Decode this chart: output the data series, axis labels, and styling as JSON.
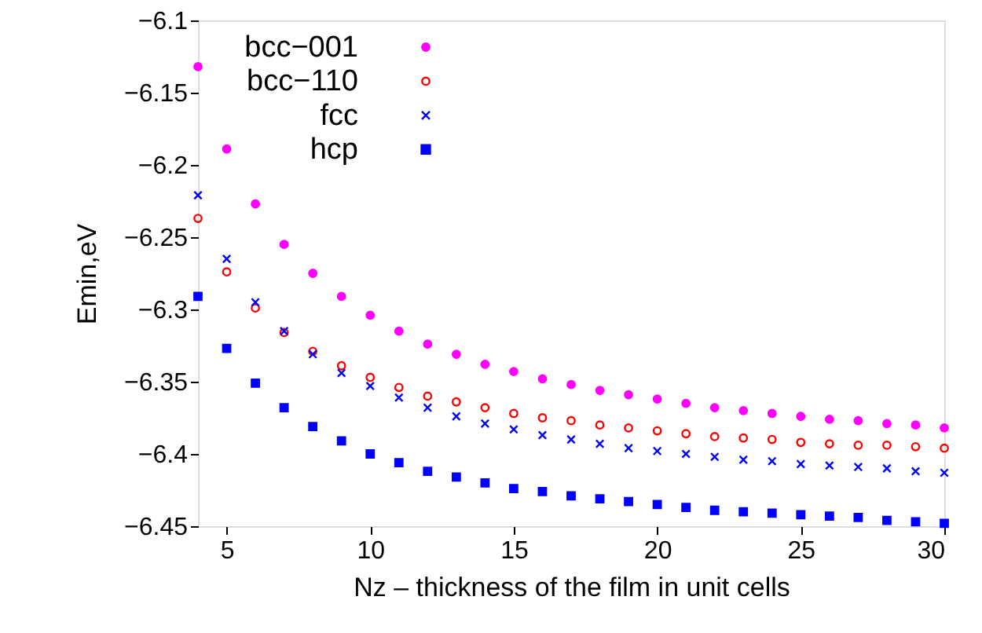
{
  "chart_data": {
    "type": "scatter",
    "xlabel": "Nz – thickness of the film in unit cells",
    "ylabel": "Emin,eV",
    "x": [
      4,
      5,
      6,
      7,
      8,
      9,
      10,
      11,
      12,
      13,
      14,
      15,
      16,
      17,
      18,
      19,
      20,
      21,
      22,
      23,
      24,
      25,
      26,
      27,
      28,
      29,
      30
    ],
    "xlim": [
      4,
      30
    ],
    "xticks": [
      5,
      10,
      15,
      20,
      25,
      30
    ],
    "ylim": [
      -6.45,
      -6.1
    ],
    "yticks": [
      -6.45,
      -6.4,
      -6.35,
      -6.3,
      -6.25,
      -6.2,
      -6.15,
      -6.1
    ],
    "grid": false,
    "legend": "top left",
    "series": [
      {
        "name": "bcc−001",
        "color": "#ff00ff",
        "marker": "circle",
        "values": [
          -6.132,
          -6.189,
          -6.227,
          -6.255,
          -6.275,
          -6.291,
          -6.304,
          -6.315,
          -6.324,
          -6.331,
          -6.338,
          -6.343,
          -6.348,
          -6.352,
          -6.356,
          -6.359,
          -6.362,
          -6.365,
          -6.368,
          -6.37,
          -6.372,
          -6.374,
          -6.376,
          -6.377,
          -6.379,
          -6.38,
          -6.382
        ]
      },
      {
        "name": "bcc−110",
        "color": "#ff0000",
        "marker": "circle",
        "values": [
          -6.237,
          -6.274,
          -6.299,
          -6.316,
          -6.329,
          -6.339,
          -6.347,
          -6.354,
          -6.36,
          -6.364,
          -6.368,
          -6.372,
          -6.375,
          -6.377,
          -6.38,
          -6.382,
          -6.384,
          -6.386,
          -6.388,
          -6.389,
          -6.39,
          -6.392,
          -6.393,
          -6.394,
          -6.394,
          -6.395,
          -6.396
        ]
      },
      {
        "name": "fcc",
        "color": "#0000ff",
        "marker": "cross",
        "values": [
          -6.221,
          -6.265,
          -6.295,
          -6.315,
          -6.331,
          -6.344,
          -6.353,
          -6.361,
          -6.368,
          -6.374,
          -6.379,
          -6.383,
          -6.387,
          -6.39,
          -6.393,
          -6.396,
          -6.398,
          -6.4,
          -6.402,
          -6.404,
          -6.405,
          -6.407,
          -6.408,
          -6.409,
          -6.41,
          -6.412,
          -6.413
        ]
      },
      {
        "name": "hcp",
        "color": "#0000ff",
        "marker": "square",
        "values": [
          -6.291,
          -6.327,
          -6.351,
          -6.368,
          -6.381,
          -6.391,
          -6.4,
          -6.406,
          -6.412,
          -6.416,
          -6.42,
          -6.424,
          -6.426,
          -6.429,
          -6.431,
          -6.433,
          -6.435,
          -6.437,
          -6.439,
          -6.44,
          -6.441,
          -6.442,
          -6.443,
          -6.444,
          -6.446,
          -6.447,
          -6.448
        ]
      }
    ]
  }
}
